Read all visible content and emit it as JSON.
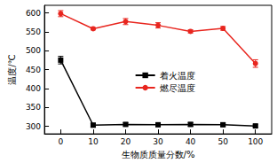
{
  "chart_data": {
    "type": "line",
    "x_label": "生物质质量分数/%",
    "y_label": "温度/℃",
    "categories": [
      "0",
      "10",
      "20",
      "30",
      "40",
      "50",
      "100"
    ],
    "series": [
      {
        "name": "着火温度",
        "color": "#000000",
        "marker": "square",
        "line_style": "solid",
        "values": [
          475,
          303,
          305,
          304,
          305,
          304,
          301
        ],
        "errors": [
          10,
          5,
          4,
          3,
          5,
          4,
          3
        ]
      },
      {
        "name": "燃尽温度",
        "color": "#e8261f",
        "marker": "circle",
        "line_style": "solid",
        "values": [
          598,
          558,
          577,
          567,
          551,
          559,
          466
        ],
        "errors": [
          8,
          3,
          8,
          7,
          4,
          5,
          10
        ]
      }
    ],
    "ylim": [
      280,
      620
    ],
    "yticks": [
      300,
      350,
      400,
      450,
      500,
      550,
      600
    ],
    "grid": false,
    "legend": "center"
  }
}
